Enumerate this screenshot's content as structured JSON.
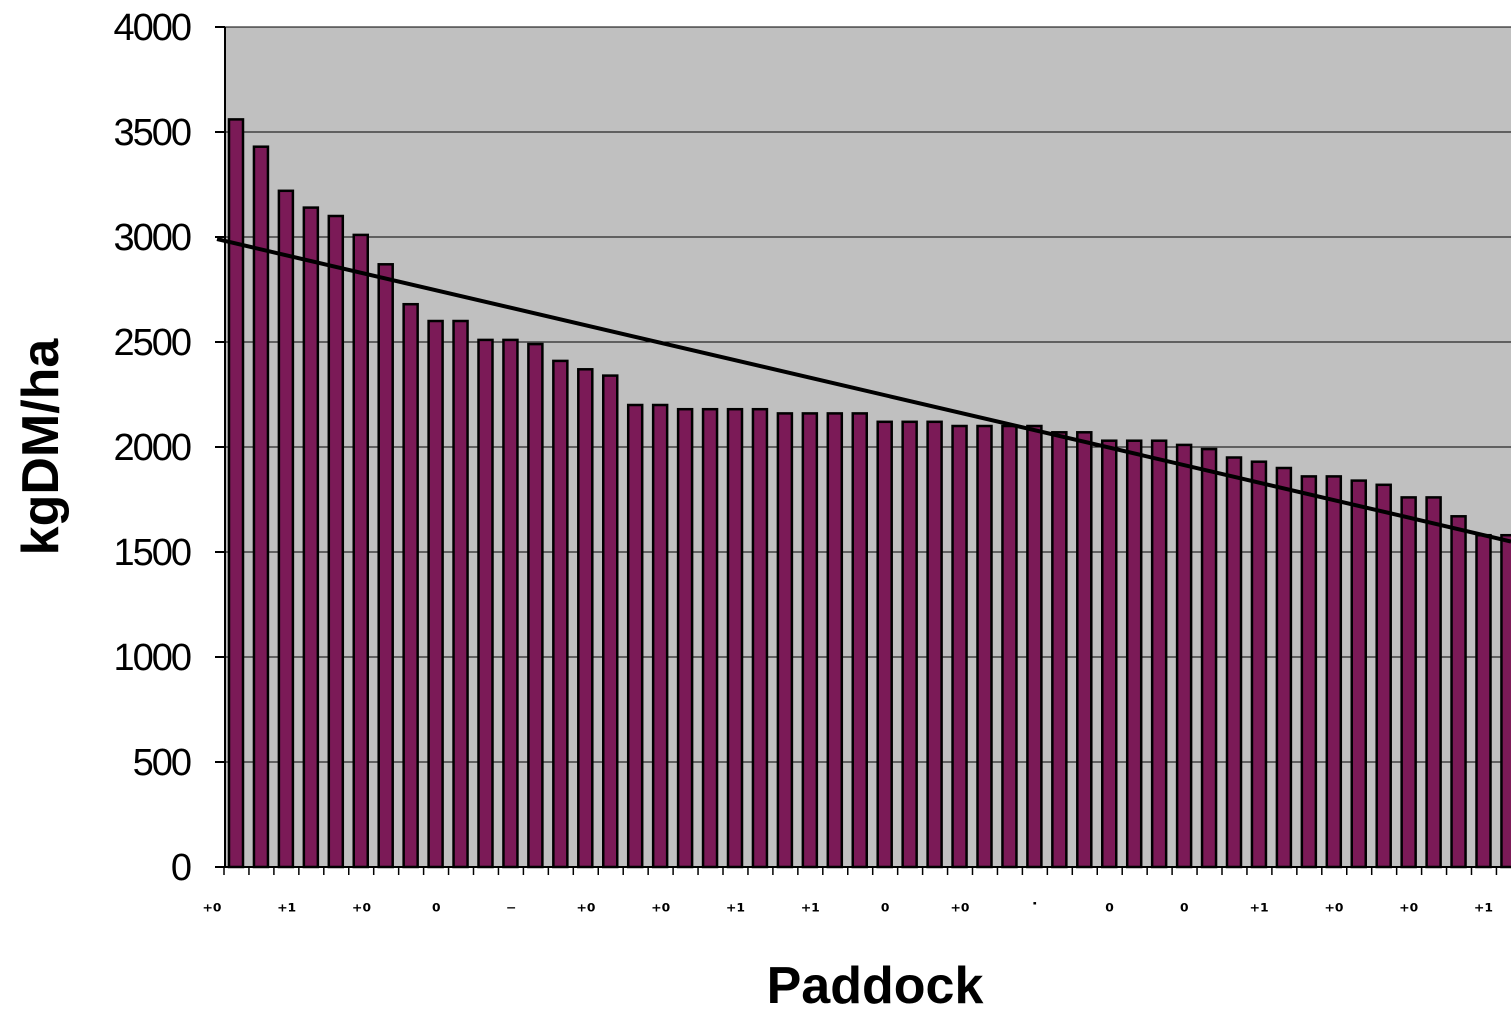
{
  "chart_data": {
    "type": "bar",
    "xlabel": "Paddock",
    "ylabel": "kgDM/ha",
    "ylim": [
      0,
      4000
    ],
    "yticks": [
      0,
      500,
      1000,
      1500,
      2000,
      2500,
      3000,
      3500,
      4000
    ],
    "grid": true,
    "plot_background": "#c0c0c0",
    "bar_color": "#7b1a57",
    "bar_outline": "#000000",
    "trendline_color": "#000000",
    "x_tick_glyphs": [
      "⁺⁰",
      "⁺¹",
      "⁺⁰",
      "⁰",
      "⁻",
      "⁺⁰",
      "⁺⁰",
      "⁺¹",
      "⁺¹",
      "⁰",
      "⁺⁰",
      "˙",
      "⁰",
      "⁰",
      "⁺¹",
      "⁺⁰",
      "⁺⁰",
      "⁺¹"
    ],
    "values": [
      3560,
      3430,
      3220,
      3140,
      3100,
      3010,
      2870,
      2680,
      2600,
      2600,
      2510,
      2510,
      2490,
      2410,
      2370,
      2340,
      2200,
      2200,
      2180,
      2180,
      2180,
      2180,
      2160,
      2160,
      2160,
      2160,
      2120,
      2120,
      2120,
      2100,
      2100,
      2100,
      2100,
      2070,
      2070,
      2030,
      2030,
      2030,
      2010,
      1990,
      1950,
      1930,
      1900,
      1860,
      1860,
      1840,
      1820,
      1760,
      1760,
      1670,
      1580,
      1580
    ],
    "trendline": {
      "type": "linear",
      "start": 2990,
      "end": 1550
    }
  }
}
